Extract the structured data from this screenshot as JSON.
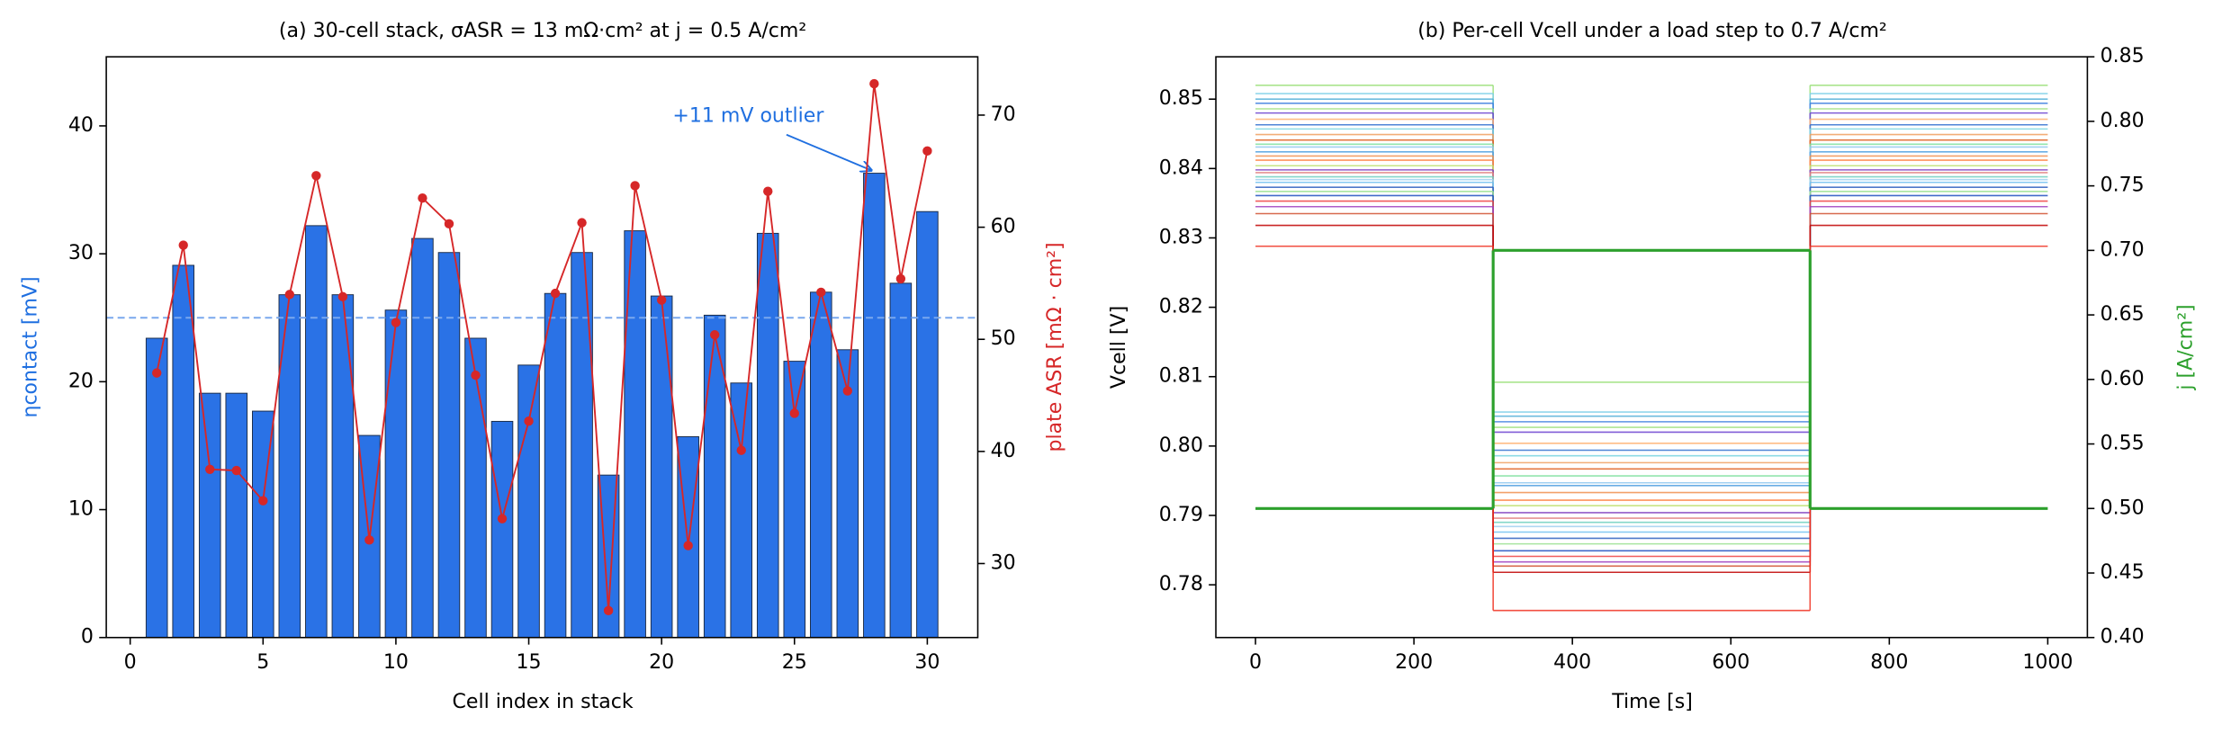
{
  "chart_data": [
    {
      "type": "bar",
      "title": "(a) 30-cell stack, σASR = 13 mΩ·cm² at j = 0.5 A/cm²",
      "xlabel": "Cell index in stack",
      "ylabel": "ηcontact [mV]",
      "y2label": "plate ASR [mΩ · cm²]",
      "ylabel_color": "#1f6fe0",
      "y2label_color": "#d62728",
      "x": [
        1,
        2,
        3,
        4,
        5,
        6,
        7,
        8,
        9,
        10,
        11,
        12,
        13,
        14,
        15,
        16,
        17,
        18,
        19,
        20,
        21,
        22,
        23,
        24,
        25,
        26,
        27,
        28,
        29,
        30
      ],
      "series": [
        {
          "type": "bar",
          "color": "#2a72e6",
          "values": [
            23.4,
            29.1,
            19.1,
            19.1,
            17.7,
            26.8,
            32.2,
            26.8,
            15.8,
            25.6,
            31.2,
            30.1,
            23.4,
            16.9,
            21.3,
            26.9,
            30.1,
            12.7,
            31.8,
            26.7,
            15.7,
            25.2,
            19.9,
            31.6,
            21.6,
            27.0,
            22.5,
            36.3,
            27.7,
            33.3
          ]
        },
        {
          "type": "line",
          "color": "#d62728",
          "axis": "y2",
          "values": [
            47.0,
            58.4,
            38.4,
            38.3,
            35.6,
            54.0,
            64.6,
            53.8,
            32.1,
            51.5,
            62.6,
            60.3,
            46.8,
            34.0,
            42.7,
            54.1,
            60.4,
            25.8,
            63.7,
            53.5,
            31.6,
            50.4,
            40.1,
            63.2,
            43.4,
            54.2,
            45.4,
            72.8,
            55.4,
            66.8
          ]
        }
      ],
      "hline": 25,
      "hline_color": "#7aa8ee",
      "annotation": "+11 mV outlier",
      "annotation_color": "#1f6fe0",
      "xlim": [
        -0.9,
        31.9
      ],
      "xticks": [
        0,
        5,
        10,
        15,
        20,
        25,
        30
      ],
      "ylim": [
        0,
        45.4
      ],
      "yticks": [
        0,
        10,
        20,
        30,
        40
      ],
      "y2lim": [
        23.4,
        75.2
      ],
      "y2ticks": [
        30,
        40,
        50,
        60,
        70
      ]
    },
    {
      "type": "line",
      "drawstyle": "steps-post",
      "title": "(b) Per-cell Vcell under a load step to 0.7 A/cm²",
      "xlabel": "Time [s]",
      "ylabel": "Vcell [V]",
      "y2label": "j [A/cm²]",
      "y2label_color": "#2ca02c",
      "x": [
        0,
        300,
        700,
        1000
      ],
      "series": [
        {
          "color": "#9be07a",
          "values": [
            0.852,
            0.8092,
            0.852,
            0.852
          ]
        },
        {
          "color": "#7fd0e8",
          "values": [
            0.8508,
            0.8049,
            0.8508,
            0.8508
          ]
        },
        {
          "color": "#55b0d8",
          "values": [
            0.85,
            0.8043,
            0.85,
            0.85
          ]
        },
        {
          "color": "#4080e0",
          "values": [
            0.8494,
            0.8035,
            0.8494,
            0.8494
          ]
        },
        {
          "color": "#a0e080",
          "values": [
            0.8486,
            0.8027,
            0.8486,
            0.8486
          ]
        },
        {
          "color": "#6a3fd0",
          "values": [
            0.848,
            0.802,
            0.848,
            0.848
          ]
        },
        {
          "color": "#ffb070",
          "values": [
            0.8471,
            0.8004,
            0.8471,
            0.8471
          ]
        },
        {
          "color": "#3070d0",
          "values": [
            0.8463,
            0.7994,
            0.8463,
            0.8463
          ]
        },
        {
          "color": "#7ad6e0",
          "values": [
            0.8457,
            0.7986,
            0.8457,
            0.8457
          ]
        },
        {
          "color": "#f0a060",
          "values": [
            0.8449,
            0.7976,
            0.8449,
            0.8449
          ]
        },
        {
          "color": "#e06020",
          "values": [
            0.8441,
            0.7967,
            0.8441,
            0.8441
          ]
        },
        {
          "color": "#80e0a0",
          "values": [
            0.8435,
            0.7957,
            0.8435,
            0.8435
          ]
        },
        {
          "color": "#90c8f0",
          "values": [
            0.8431,
            0.7947,
            0.8431,
            0.8431
          ]
        },
        {
          "color": "#50a0e0",
          "values": [
            0.8424,
            0.7943,
            0.8424,
            0.8424
          ]
        },
        {
          "color": "#f09050",
          "values": [
            0.8418,
            0.7933,
            0.8418,
            0.8418
          ]
        },
        {
          "color": "#ff8040",
          "values": [
            0.8412,
            0.7922,
            0.8412,
            0.8412
          ]
        },
        {
          "color": "#c0e070",
          "values": [
            0.8404,
            0.7914,
            0.8404,
            0.8404
          ]
        },
        {
          "color": "#8040c0",
          "values": [
            0.8398,
            0.7904,
            0.8398,
            0.8398
          ]
        },
        {
          "color": "#e08080",
          "values": [
            0.8394,
            0.7896,
            0.8394,
            0.8394
          ]
        },
        {
          "color": "#6fd0c0",
          "values": [
            0.8388,
            0.789,
            0.8388,
            0.8388
          ]
        },
        {
          "color": "#a0d0f0",
          "values": [
            0.8384,
            0.7884,
            0.8384,
            0.8384
          ]
        },
        {
          "color": "#70c0f0",
          "values": [
            0.838,
            0.7876,
            0.838,
            0.838
          ]
        },
        {
          "color": "#3060c0",
          "values": [
            0.8373,
            0.7867,
            0.8373,
            0.8373
          ]
        },
        {
          "color": "#9ae090",
          "values": [
            0.8367,
            0.7859,
            0.8367,
            0.8367
          ]
        },
        {
          "color": "#2050c0",
          "values": [
            0.8361,
            0.7849,
            0.8361,
            0.8361
          ]
        },
        {
          "color": "#f04040",
          "values": [
            0.8353,
            0.7841,
            0.8353,
            0.8353
          ]
        },
        {
          "color": "#a040c0",
          "values": [
            0.8345,
            0.7833,
            0.8345,
            0.8345
          ]
        },
        {
          "color": "#d05030",
          "values": [
            0.8335,
            0.7827,
            0.8335,
            0.8335
          ]
        },
        {
          "color": "#c00000",
          "values": [
            0.8318,
            0.7818,
            0.8318,
            0.8318
          ]
        },
        {
          "color": "#f03020",
          "values": [
            0.8288,
            0.7763,
            0.8288,
            0.8288
          ]
        },
        {
          "color": "#2ca02c",
          "axis": "y2",
          "values": [
            0.5,
            0.7,
            0.5,
            0.5
          ]
        }
      ],
      "xlim": [
        -50,
        1050
      ],
      "xticks": [
        0,
        200,
        400,
        600,
        800,
        1000
      ],
      "ylim": [
        0.7724,
        0.8561
      ],
      "yticks": [
        0.78,
        0.79,
        {
          "value": 0.8,
          "label": "0.80"
        },
        0.81,
        0.82,
        0.83,
        0.84,
        0.85
      ],
      "y2lim": [
        0.4,
        0.85
      ],
      "y2ticks": [
        {
          "value": 0.4,
          "label": "0.40"
        },
        0.45,
        {
          "value": 0.5,
          "label": "0.50"
        },
        0.55,
        {
          "value": 0.6,
          "label": "0.60"
        },
        0.65,
        {
          "value": 0.7,
          "label": "0.70"
        },
        0.75,
        {
          "value": 0.8,
          "label": "0.80"
        },
        0.85
      ]
    }
  ]
}
